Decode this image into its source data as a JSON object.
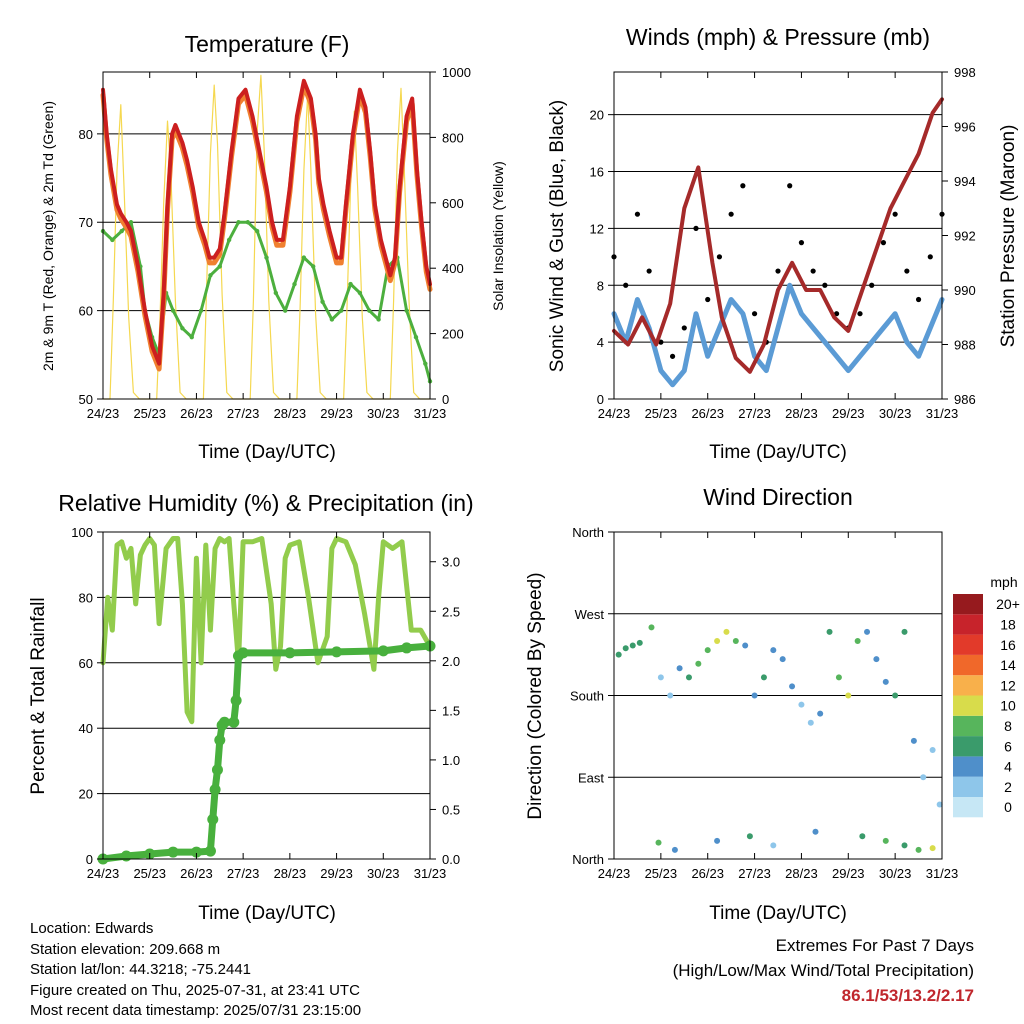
{
  "x_ticks": [
    "24/23",
    "25/23",
    "26/23",
    "27/23",
    "28/23",
    "29/23",
    "30/23",
    "31/23"
  ],
  "x_label": "Time (Day/UTC)",
  "footer": {
    "location": "Location: Edwards",
    "elevation": "Station elevation: 209.668 m",
    "latlon": "Station lat/lon: 44.3218; -75.2441",
    "created": "Figure created on Thu, 2025-07-31, at 23:41 UTC",
    "recent": "Most recent data timestamp: 2025/07/31 23:15:00",
    "extremes_title": "Extremes For Past 7 Days",
    "extremes_sub": "(High/Low/Max Wind/Total Precipitation)",
    "extremes_values": "86.1/53/13.2/2.17"
  },
  "chart_data": [
    {
      "type": "line",
      "title": "Temperature (F)",
      "xlabel": "Time (Day/UTC)",
      "ylabel": "2m & 9m T (Red, Orange) & 2m Td (Green)",
      "ylabel_right": "Solar Insolation (Yellow)",
      "ylim": [
        50,
        87
      ],
      "y_ticks": [
        50,
        60,
        70,
        80
      ],
      "ylim_right": [
        0,
        1000
      ],
      "y_ticks_right": [
        0,
        200,
        400,
        600,
        800,
        1000
      ],
      "xlim": [
        0,
        7
      ],
      "colors": {
        "t2m": "#cc1f1f",
        "t9m": "#f08030",
        "td": "#4caf3e",
        "solar": "#f5d850"
      },
      "series": [
        {
          "key": "t2m",
          "x": [
            0,
            0.08,
            0.17,
            0.3,
            0.38,
            0.5,
            0.6,
            0.75,
            0.9,
            1.05,
            1.2,
            1.3,
            1.38,
            1.48,
            1.55,
            1.7,
            1.8,
            1.92,
            2.05,
            2.18,
            2.28,
            2.38,
            2.5,
            2.6,
            2.75,
            2.9,
            3.05,
            3.2,
            3.35,
            3.5,
            3.62,
            3.72,
            3.85,
            4.0,
            4.15,
            4.3,
            4.45,
            4.55,
            4.62,
            4.72,
            4.85,
            5.0,
            5.1,
            5.2,
            5.35,
            5.5,
            5.62,
            5.72,
            5.82,
            5.95,
            6.05,
            6.15,
            6.25,
            6.35,
            6.5,
            6.62,
            6.72,
            6.82,
            6.92,
            7.0
          ],
          "y": [
            85,
            80,
            76,
            72,
            71,
            70,
            69,
            65,
            60,
            56,
            54,
            62,
            72,
            80,
            81,
            79,
            77,
            74,
            70,
            68,
            66,
            66,
            67,
            71,
            78,
            84,
            85,
            82,
            78,
            74,
            70,
            68,
            68,
            74,
            82,
            86,
            84,
            80,
            75,
            72,
            69,
            66,
            66,
            72,
            80,
            85,
            83,
            78,
            72,
            68,
            66,
            64,
            66,
            74,
            82,
            84,
            76,
            70,
            65,
            63
          ]
        },
        {
          "key": "td",
          "x": [
            0,
            0.2,
            0.4,
            0.6,
            0.8,
            0.9,
            1.05,
            1.2,
            1.35,
            1.5,
            1.7,
            1.9,
            2.1,
            2.3,
            2.5,
            2.7,
            2.9,
            3.1,
            3.3,
            3.5,
            3.7,
            3.9,
            4.1,
            4.3,
            4.5,
            4.7,
            4.9,
            5.1,
            5.3,
            5.5,
            5.7,
            5.9,
            6.1,
            6.3,
            6.5,
            6.7,
            6.9,
            7.0
          ],
          "y": [
            69,
            68,
            69,
            70,
            65,
            60,
            57,
            55,
            62,
            60,
            58,
            57,
            60,
            64,
            65,
            68,
            70,
            70,
            69,
            66,
            62,
            60,
            63,
            66,
            65,
            61,
            59,
            60,
            63,
            62,
            60,
            59,
            65,
            66,
            60,
            57,
            54,
            52
          ]
        },
        {
          "key": "solar",
          "x": [
            0,
            0.15,
            0.22,
            0.3,
            0.38,
            0.45,
            0.55,
            0.65,
            0.78,
            0.9,
            1.0,
            1.15,
            1.22,
            1.3,
            1.38,
            1.45,
            1.55,
            1.65,
            1.78,
            1.9,
            2.0,
            2.15,
            2.22,
            2.3,
            2.38,
            2.45,
            2.55,
            2.65,
            2.78,
            2.9,
            3.0,
            3.15,
            3.22,
            3.3,
            3.38,
            3.45,
            3.55,
            3.65,
            3.78,
            3.9,
            4.0,
            4.15,
            4.22,
            4.3,
            4.38,
            4.45,
            4.55,
            4.65,
            4.78,
            4.9,
            5.0,
            5.15,
            5.22,
            5.3,
            5.38,
            5.45,
            5.55,
            5.65,
            5.78,
            5.9,
            6.0,
            6.15,
            6.22,
            6.3,
            6.38,
            6.45,
            6.55,
            6.65,
            6.78,
            6.9,
            7.0
          ],
          "y": [
            0,
            0,
            300,
            700,
            900,
            650,
            250,
            20,
            0,
            0,
            0,
            0,
            250,
            600,
            850,
            700,
            300,
            20,
            0,
            0,
            0,
            0,
            350,
            750,
            960,
            780,
            320,
            20,
            0,
            0,
            0,
            0,
            300,
            820,
            990,
            760,
            300,
            20,
            0,
            0,
            0,
            0,
            280,
            700,
            930,
            700,
            260,
            20,
            0,
            0,
            0,
            0,
            260,
            650,
            880,
            650,
            250,
            20,
            0,
            0,
            0,
            0,
            300,
            750,
            950,
            700,
            300,
            20,
            0,
            0,
            0
          ]
        }
      ]
    },
    {
      "type": "scatter",
      "title": "Winds (mph) & Pressure (mb)",
      "xlabel": "Time (Day/UTC)",
      "ylabel": "Sonic Wind & Gust (Blue, Black)",
      "ylabel_right": "Station Pressure (Maroon)",
      "ylim": [
        0,
        23
      ],
      "y_ticks": [
        0,
        4,
        8,
        12,
        16,
        20
      ],
      "ylim_right": [
        986,
        998
      ],
      "y_ticks_right": [
        986,
        988,
        990,
        992,
        994,
        996,
        998
      ],
      "xlim": [
        0,
        7
      ],
      "colors": {
        "wind": "#5b9bd5",
        "gust": "#000000",
        "pressure": "#a52a2a"
      },
      "series": [
        {
          "key": "wind",
          "x": [
            0,
            0.25,
            0.5,
            0.75,
            1.0,
            1.25,
            1.5,
            1.75,
            2.0,
            2.25,
            2.5,
            2.75,
            3.0,
            3.25,
            3.5,
            3.75,
            4.0,
            4.25,
            4.5,
            4.75,
            5.0,
            5.25,
            5.5,
            5.75,
            6.0,
            6.25,
            6.5,
            6.75,
            7.0
          ],
          "y": [
            6,
            4,
            7,
            5,
            2,
            1,
            2,
            6,
            3,
            5,
            7,
            6,
            3,
            2,
            5,
            8,
            6,
            5,
            4,
            3,
            2,
            3,
            4,
            5,
            6,
            4,
            3,
            5,
            7
          ]
        },
        {
          "key": "gust",
          "x": [
            0,
            0.25,
            0.5,
            0.75,
            1.0,
            1.25,
            1.5,
            1.75,
            2.0,
            2.25,
            2.5,
            2.75,
            3.0,
            3.25,
            3.5,
            3.75,
            4.0,
            4.25,
            4.5,
            4.75,
            5.0,
            5.25,
            5.5,
            5.75,
            6.0,
            6.25,
            6.5,
            6.75,
            7.0
          ],
          "y": [
            10,
            8,
            13,
            9,
            4,
            3,
            5,
            12,
            7,
            10,
            13,
            15,
            6,
            4,
            9,
            15,
            11,
            9,
            8,
            6,
            5,
            6,
            8,
            11,
            13,
            9,
            7,
            10,
            13
          ]
        },
        {
          "key": "pressure",
          "x": [
            0,
            0.3,
            0.6,
            0.9,
            1.2,
            1.5,
            1.8,
            2.1,
            2.3,
            2.6,
            2.9,
            3.2,
            3.5,
            3.8,
            4.1,
            4.4,
            4.7,
            5.0,
            5.3,
            5.6,
            5.9,
            6.2,
            6.5,
            6.8,
            7.0
          ],
          "y": [
            988.5,
            988,
            989,
            988,
            989.5,
            993,
            994.5,
            991,
            989,
            987.5,
            987,
            988,
            990,
            991,
            990,
            990,
            989,
            988.5,
            990,
            991.5,
            993,
            994,
            995,
            996.5,
            997
          ]
        }
      ]
    },
    {
      "type": "line",
      "title": "Relative Humidity (%) & Precipitation (in)",
      "xlabel": "Time (Day/UTC)",
      "ylabel": "Percent & Total Rainfall",
      "ylim": [
        0,
        100
      ],
      "y_ticks": [
        0,
        20,
        40,
        60,
        80,
        100
      ],
      "ylim_right": [
        0,
        3.3
      ],
      "y_ticks_right": [
        0.0,
        0.5,
        1.0,
        1.5,
        2.0,
        2.5,
        3.0
      ],
      "xlim": [
        0,
        7
      ],
      "colors": {
        "rh": "#92cc4c",
        "rain": "#48b03d"
      },
      "series": [
        {
          "key": "rh",
          "x": [
            0,
            0.1,
            0.2,
            0.3,
            0.4,
            0.5,
            0.6,
            0.7,
            0.8,
            0.9,
            1.0,
            1.1,
            1.2,
            1.35,
            1.5,
            1.6,
            1.7,
            1.8,
            1.9,
            2.0,
            2.1,
            2.2,
            2.3,
            2.4,
            2.5,
            2.6,
            2.7,
            2.8,
            2.9,
            3.0,
            3.2,
            3.4,
            3.6,
            3.7,
            3.8,
            3.9,
            4.0,
            4.2,
            4.4,
            4.6,
            4.8,
            4.9,
            5.0,
            5.2,
            5.4,
            5.6,
            5.8,
            5.9,
            6.0,
            6.2,
            6.4,
            6.6,
            6.8,
            7.0
          ],
          "y": [
            60,
            80,
            70,
            96,
            97,
            92,
            95,
            78,
            93,
            96,
            98,
            96,
            72,
            95,
            98,
            98,
            78,
            45,
            42,
            92,
            60,
            96,
            70,
            95,
            98,
            97,
            98,
            78,
            60,
            97,
            97,
            98,
            78,
            58,
            65,
            92,
            96,
            97,
            80,
            60,
            68,
            95,
            98,
            97,
            90,
            75,
            58,
            80,
            97,
            95,
            97,
            70,
            70,
            65
          ]
        },
        {
          "key": "rain",
          "x": [
            0,
            0.5,
            1.0,
            1.5,
            2.0,
            2.3,
            2.35,
            2.4,
            2.45,
            2.5,
            2.55,
            2.6,
            2.8,
            2.85,
            2.9,
            3.0,
            4.0,
            5.0,
            6.0,
            6.5,
            7.0
          ],
          "y": [
            0,
            0.03,
            0.05,
            0.07,
            0.07,
            0.08,
            0.4,
            0.7,
            0.9,
            1.2,
            1.35,
            1.38,
            1.38,
            1.6,
            2.05,
            2.08,
            2.08,
            2.09,
            2.1,
            2.13,
            2.15
          ]
        }
      ]
    },
    {
      "type": "scatter",
      "title": "Wind Direction",
      "xlabel": "Time (Day/UTC)",
      "ylabel": "Direction (Colored By Speed)",
      "y_categories": [
        "North",
        "East",
        "South",
        "West",
        "North"
      ],
      "ylim": [
        0,
        360
      ],
      "xlim": [
        0,
        7
      ],
      "legend": {
        "title": "mph",
        "labels": [
          "0",
          "2",
          "4",
          "6",
          "8",
          "10",
          "12",
          "14",
          "16",
          "18",
          "20+"
        ],
        "colors": [
          "#c6e7f5",
          "#8ec6ea",
          "#4f8fca",
          "#3a9b6b",
          "#57b55c",
          "#d8dc4b",
          "#f8b04b",
          "#f0682a",
          "#e23a2a",
          "#c7232b",
          "#961a1e"
        ],
        "placement": "right"
      },
      "x": [
        0.1,
        0.25,
        0.4,
        0.55,
        0.8,
        1.0,
        1.2,
        1.4,
        1.6,
        1.8,
        2.0,
        2.2,
        2.4,
        2.6,
        2.8,
        3.0,
        3.2,
        3.4,
        3.6,
        3.8,
        4.0,
        4.2,
        4.4,
        4.6,
        4.8,
        5.0,
        5.2,
        5.4,
        5.6,
        5.8,
        6.0,
        6.2,
        6.4,
        6.6,
        6.8,
        6.95,
        0.95,
        1.3,
        2.2,
        2.9,
        3.4,
        4.3,
        5.3,
        5.8,
        6.2,
        6.5,
        6.8
      ],
      "y": [
        225,
        232,
        235,
        238,
        255,
        200,
        180,
        210,
        200,
        215,
        230,
        240,
        250,
        240,
        235,
        180,
        200,
        230,
        220,
        190,
        170,
        150,
        160,
        250,
        200,
        180,
        240,
        250,
        220,
        195,
        180,
        250,
        130,
        90,
        120,
        60,
        18,
        10,
        20,
        25,
        15,
        30,
        25,
        20,
        15,
        10,
        12
      ],
      "speed": [
        5,
        5,
        5,
        6,
        7,
        2,
        2,
        4,
        6,
        7,
        8,
        10,
        9,
        7,
        3,
        3,
        6,
        4,
        4,
        3,
        2,
        2,
        4,
        6,
        8,
        10,
        7,
        4,
        3,
        4,
        5,
        6,
        3,
        2,
        2,
        2,
        7,
        3,
        4,
        5,
        2,
        4,
        5,
        7,
        6,
        8,
        9
      ]
    }
  ]
}
